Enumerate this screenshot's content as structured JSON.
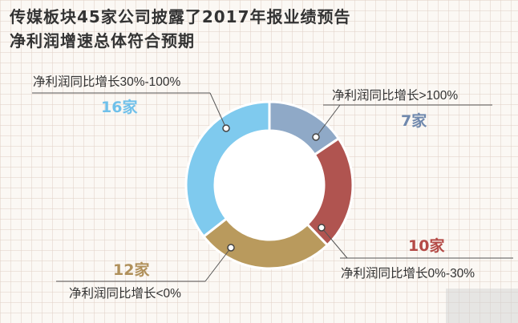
{
  "title": {
    "line1": "传媒板块45家公司披露了2017年报业绩预告",
    "line2": "净利润增速总体符合预期"
  },
  "chart_data": {
    "type": "pie",
    "categories": [
      "净利润同比增长>100%",
      "净利润同比增长0%-30%",
      "净利润同比增长<0%",
      "净利润同比增长30%-100%"
    ],
    "values": [
      7,
      10,
      12,
      16
    ],
    "count_labels": [
      "7家",
      "10家",
      "12家",
      "16家"
    ],
    "colors": [
      "#8fa9c7",
      "#b05450",
      "#b99a5d",
      "#7fcaee"
    ],
    "label_colors": [
      "#6f88ad",
      "#b44a46",
      "#b0905a",
      "#6fc0ea"
    ]
  }
}
